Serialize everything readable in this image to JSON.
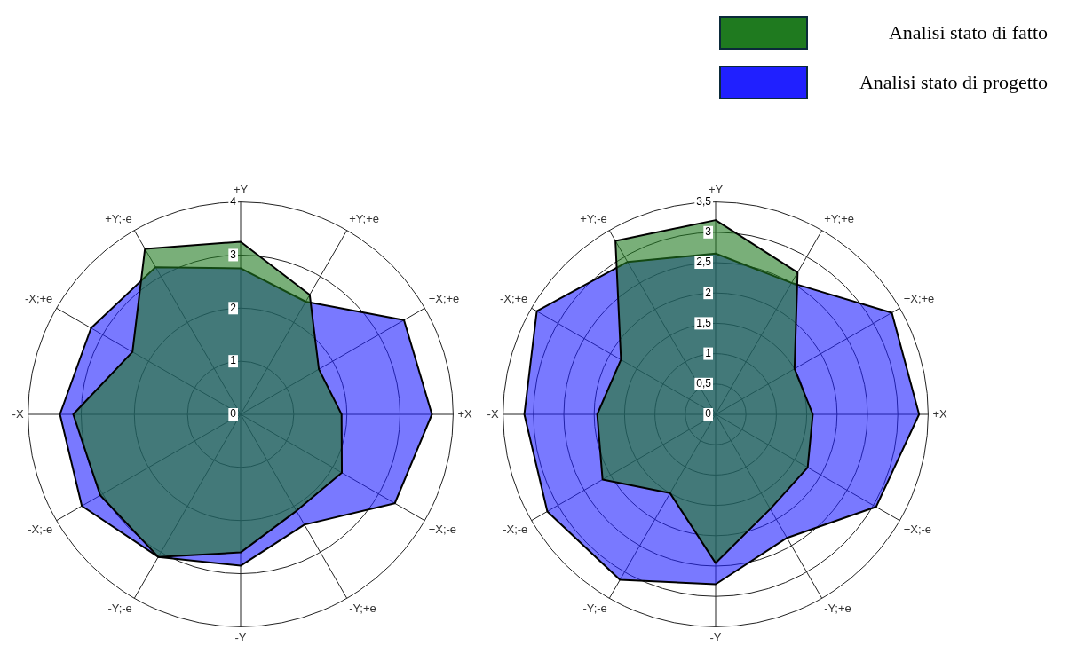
{
  "chart_data": [
    {
      "type": "radar",
      "categories": [
        "+Y",
        "+Y;+e",
        "+X;+e",
        "+X",
        "+X;-e",
        "-Y;+e",
        "-Y",
        "-Y;-e",
        "-X;-e",
        "-X",
        "-X;+e",
        "+Y;-e"
      ],
      "ylim": [
        0,
        4
      ],
      "yticks": [
        0,
        1,
        2,
        3,
        4
      ],
      "legend": "top right",
      "series": [
        {
          "name": "Analisi stato di fatto",
          "color": "#1f7a1f",
          "values": [
            3.25,
            2.6,
            1.7,
            1.9,
            2.2,
            2.1,
            2.6,
            3.1,
            3.05,
            3.15,
            2.35,
            3.6
          ]
        },
        {
          "name": "Analisi stato di progetto",
          "color": "#2020ff",
          "values": [
            2.75,
            2.45,
            3.55,
            3.6,
            3.35,
            2.4,
            2.85,
            3.1,
            3.45,
            3.4,
            3.25,
            3.2
          ]
        }
      ]
    },
    {
      "type": "radar",
      "categories": [
        "+Y",
        "+Y;+e",
        "+X;+e",
        "+X",
        "+X;-e",
        "-Y;+e",
        "-Y",
        "-Y;-e",
        "-X;-e",
        "-X",
        "-X;+e",
        "+Y;-e"
      ],
      "ylim": [
        0,
        3.5
      ],
      "yticks": [
        0,
        {
          "value": 0.5,
          "label": "0,5"
        },
        1,
        {
          "value": 1.5,
          "label": "1,5"
        },
        2,
        {
          "value": 2.5,
          "label": "2,5"
        },
        3,
        {
          "value": 3.5,
          "label": "3,5"
        }
      ],
      "series": [
        {
          "color": "#1f7a1f",
          "values": [
            3.2,
            2.7,
            1.5,
            1.6,
            1.75,
            1.8,
            2.45,
            1.5,
            2.15,
            1.95,
            1.8,
            3.3
          ]
        },
        {
          "color": "#2020ff",
          "values": [
            2.65,
            2.5,
            3.35,
            3.35,
            3.05,
            2.35,
            2.8,
            3.15,
            3.2,
            3.15,
            3.4,
            2.9
          ]
        }
      ]
    }
  ]
}
